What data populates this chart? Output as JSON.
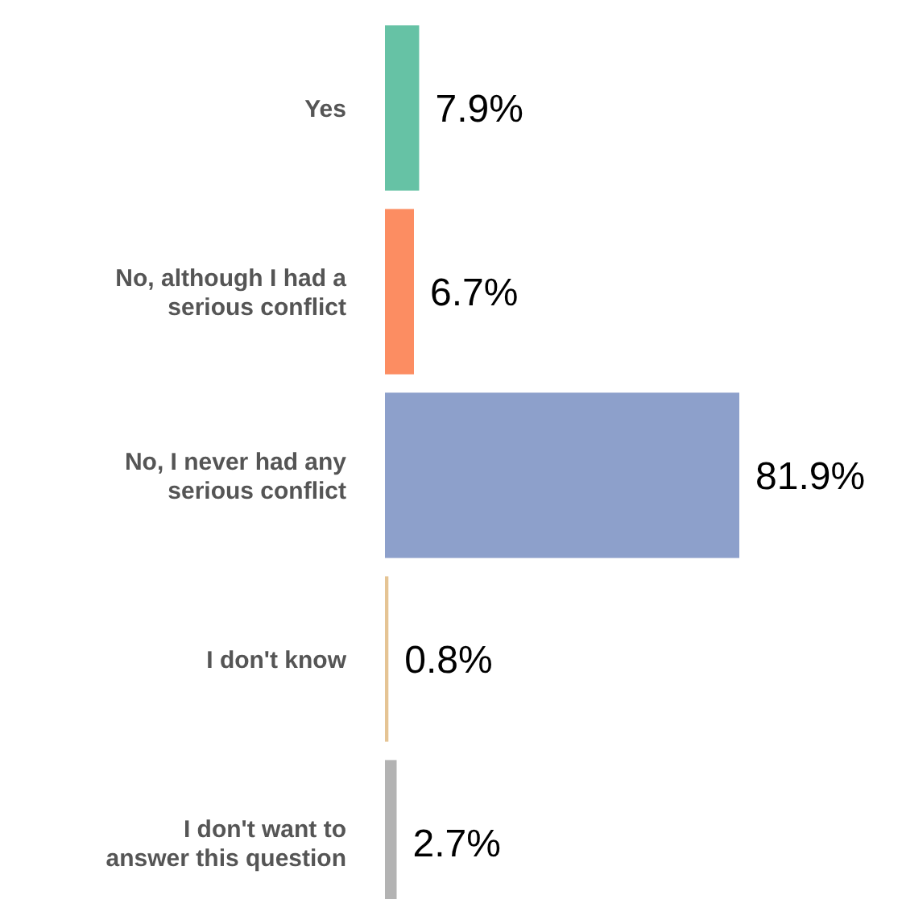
{
  "chart_data": {
    "type": "bar",
    "orientation": "horizontal",
    "categories": [
      "Yes",
      "No, although I had a serious conflict",
      "No, I never had any serious conflict",
      "I don't know",
      "I don't want to answer this question"
    ],
    "values": [
      7.9,
      6.7,
      81.9,
      0.8,
      2.7
    ],
    "colors": [
      "#66c2a5",
      "#fc8d62",
      "#8da0cb",
      "#e5c494",
      "#b3b3b3"
    ],
    "value_labels": [
      "7.9%",
      "6.7%",
      "81.9%",
      "0.8%",
      "2.7%"
    ]
  }
}
